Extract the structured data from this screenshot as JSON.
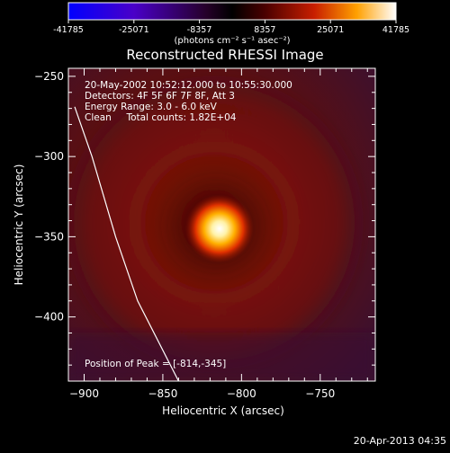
{
  "chart_data": {
    "type": "heatmap",
    "title": "Reconstructed RHESSI Image",
    "xlabel": "Heliocentric X (arcsec)",
    "ylabel": "Heliocentric Y (arcsec)",
    "xlim": [
      -910,
      -715
    ],
    "ylim": [
      -440,
      -245
    ],
    "xticks": [
      -900,
      -850,
      -800,
      -750
    ],
    "yticks": [
      -250,
      -300,
      -350,
      -400
    ],
    "colorbar": {
      "ticks": [
        "-41785",
        "-25071",
        "-8357",
        "8357",
        "25071",
        "41785"
      ],
      "min": -41785,
      "max": 41785,
      "units": "(photons cm⁻² s⁻¹ asec⁻²)"
    },
    "info_lines": [
      "20-May-2002 10:52:12.000 to 10:55:30.000",
      "Detectors: 4F 5F 6F 7F 8F, Att 3",
      "Energy Range: 3.0 - 6.0 keV",
      "Clean     Total counts: 1.82E+04"
    ],
    "peak_text": "Position of Peak = [-814,-345]",
    "peak": {
      "x": -814,
      "y": -345
    },
    "limb_points": [
      [
        -906,
        -269
      ],
      [
        -895,
        -300
      ],
      [
        -880,
        -350
      ],
      [
        -866,
        -390
      ],
      [
        -840,
        -440
      ]
    ]
  },
  "footer": {
    "timestamp": "20-Apr-2013 04:35"
  }
}
